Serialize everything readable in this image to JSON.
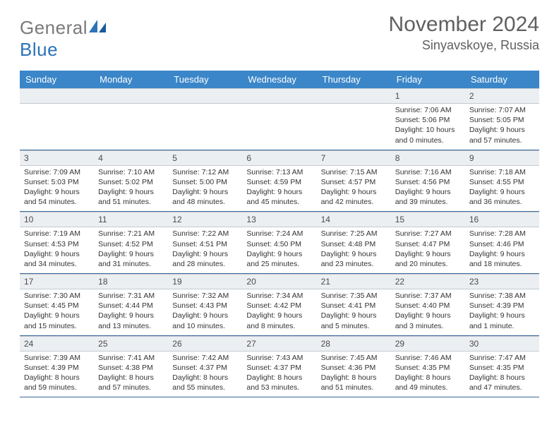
{
  "brand": {
    "name_part1": "General",
    "name_part2": "Blue"
  },
  "title": "November 2024",
  "location": "Sinyavskoye, Russia",
  "colors": {
    "header_bg": "#3a86c8",
    "header_text": "#ffffff",
    "daynum_bg": "#eceff2",
    "text": "#333333",
    "title_text": "#606060",
    "rule": "#3a6a9a"
  },
  "day_names": [
    "Sunday",
    "Monday",
    "Tuesday",
    "Wednesday",
    "Thursday",
    "Friday",
    "Saturday"
  ],
  "weeks": [
    [
      {
        "n": "",
        "sr": "",
        "ss": "",
        "dl": ""
      },
      {
        "n": "",
        "sr": "",
        "ss": "",
        "dl": ""
      },
      {
        "n": "",
        "sr": "",
        "ss": "",
        "dl": ""
      },
      {
        "n": "",
        "sr": "",
        "ss": "",
        "dl": ""
      },
      {
        "n": "",
        "sr": "",
        "ss": "",
        "dl": ""
      },
      {
        "n": "1",
        "sr": "Sunrise: 7:06 AM",
        "ss": "Sunset: 5:06 PM",
        "dl": "Daylight: 10 hours and 0 minutes."
      },
      {
        "n": "2",
        "sr": "Sunrise: 7:07 AM",
        "ss": "Sunset: 5:05 PM",
        "dl": "Daylight: 9 hours and 57 minutes."
      }
    ],
    [
      {
        "n": "3",
        "sr": "Sunrise: 7:09 AM",
        "ss": "Sunset: 5:03 PM",
        "dl": "Daylight: 9 hours and 54 minutes."
      },
      {
        "n": "4",
        "sr": "Sunrise: 7:10 AM",
        "ss": "Sunset: 5:02 PM",
        "dl": "Daylight: 9 hours and 51 minutes."
      },
      {
        "n": "5",
        "sr": "Sunrise: 7:12 AM",
        "ss": "Sunset: 5:00 PM",
        "dl": "Daylight: 9 hours and 48 minutes."
      },
      {
        "n": "6",
        "sr": "Sunrise: 7:13 AM",
        "ss": "Sunset: 4:59 PM",
        "dl": "Daylight: 9 hours and 45 minutes."
      },
      {
        "n": "7",
        "sr": "Sunrise: 7:15 AM",
        "ss": "Sunset: 4:57 PM",
        "dl": "Daylight: 9 hours and 42 minutes."
      },
      {
        "n": "8",
        "sr": "Sunrise: 7:16 AM",
        "ss": "Sunset: 4:56 PM",
        "dl": "Daylight: 9 hours and 39 minutes."
      },
      {
        "n": "9",
        "sr": "Sunrise: 7:18 AM",
        "ss": "Sunset: 4:55 PM",
        "dl": "Daylight: 9 hours and 36 minutes."
      }
    ],
    [
      {
        "n": "10",
        "sr": "Sunrise: 7:19 AM",
        "ss": "Sunset: 4:53 PM",
        "dl": "Daylight: 9 hours and 34 minutes."
      },
      {
        "n": "11",
        "sr": "Sunrise: 7:21 AM",
        "ss": "Sunset: 4:52 PM",
        "dl": "Daylight: 9 hours and 31 minutes."
      },
      {
        "n": "12",
        "sr": "Sunrise: 7:22 AM",
        "ss": "Sunset: 4:51 PM",
        "dl": "Daylight: 9 hours and 28 minutes."
      },
      {
        "n": "13",
        "sr": "Sunrise: 7:24 AM",
        "ss": "Sunset: 4:50 PM",
        "dl": "Daylight: 9 hours and 25 minutes."
      },
      {
        "n": "14",
        "sr": "Sunrise: 7:25 AM",
        "ss": "Sunset: 4:48 PM",
        "dl": "Daylight: 9 hours and 23 minutes."
      },
      {
        "n": "15",
        "sr": "Sunrise: 7:27 AM",
        "ss": "Sunset: 4:47 PM",
        "dl": "Daylight: 9 hours and 20 minutes."
      },
      {
        "n": "16",
        "sr": "Sunrise: 7:28 AM",
        "ss": "Sunset: 4:46 PM",
        "dl": "Daylight: 9 hours and 18 minutes."
      }
    ],
    [
      {
        "n": "17",
        "sr": "Sunrise: 7:30 AM",
        "ss": "Sunset: 4:45 PM",
        "dl": "Daylight: 9 hours and 15 minutes."
      },
      {
        "n": "18",
        "sr": "Sunrise: 7:31 AM",
        "ss": "Sunset: 4:44 PM",
        "dl": "Daylight: 9 hours and 13 minutes."
      },
      {
        "n": "19",
        "sr": "Sunrise: 7:32 AM",
        "ss": "Sunset: 4:43 PM",
        "dl": "Daylight: 9 hours and 10 minutes."
      },
      {
        "n": "20",
        "sr": "Sunrise: 7:34 AM",
        "ss": "Sunset: 4:42 PM",
        "dl": "Daylight: 9 hours and 8 minutes."
      },
      {
        "n": "21",
        "sr": "Sunrise: 7:35 AM",
        "ss": "Sunset: 4:41 PM",
        "dl": "Daylight: 9 hours and 5 minutes."
      },
      {
        "n": "22",
        "sr": "Sunrise: 7:37 AM",
        "ss": "Sunset: 4:40 PM",
        "dl": "Daylight: 9 hours and 3 minutes."
      },
      {
        "n": "23",
        "sr": "Sunrise: 7:38 AM",
        "ss": "Sunset: 4:39 PM",
        "dl": "Daylight: 9 hours and 1 minute."
      }
    ],
    [
      {
        "n": "24",
        "sr": "Sunrise: 7:39 AM",
        "ss": "Sunset: 4:39 PM",
        "dl": "Daylight: 8 hours and 59 minutes."
      },
      {
        "n": "25",
        "sr": "Sunrise: 7:41 AM",
        "ss": "Sunset: 4:38 PM",
        "dl": "Daylight: 8 hours and 57 minutes."
      },
      {
        "n": "26",
        "sr": "Sunrise: 7:42 AM",
        "ss": "Sunset: 4:37 PM",
        "dl": "Daylight: 8 hours and 55 minutes."
      },
      {
        "n": "27",
        "sr": "Sunrise: 7:43 AM",
        "ss": "Sunset: 4:37 PM",
        "dl": "Daylight: 8 hours and 53 minutes."
      },
      {
        "n": "28",
        "sr": "Sunrise: 7:45 AM",
        "ss": "Sunset: 4:36 PM",
        "dl": "Daylight: 8 hours and 51 minutes."
      },
      {
        "n": "29",
        "sr": "Sunrise: 7:46 AM",
        "ss": "Sunset: 4:35 PM",
        "dl": "Daylight: 8 hours and 49 minutes."
      },
      {
        "n": "30",
        "sr": "Sunrise: 7:47 AM",
        "ss": "Sunset: 4:35 PM",
        "dl": "Daylight: 8 hours and 47 minutes."
      }
    ]
  ]
}
